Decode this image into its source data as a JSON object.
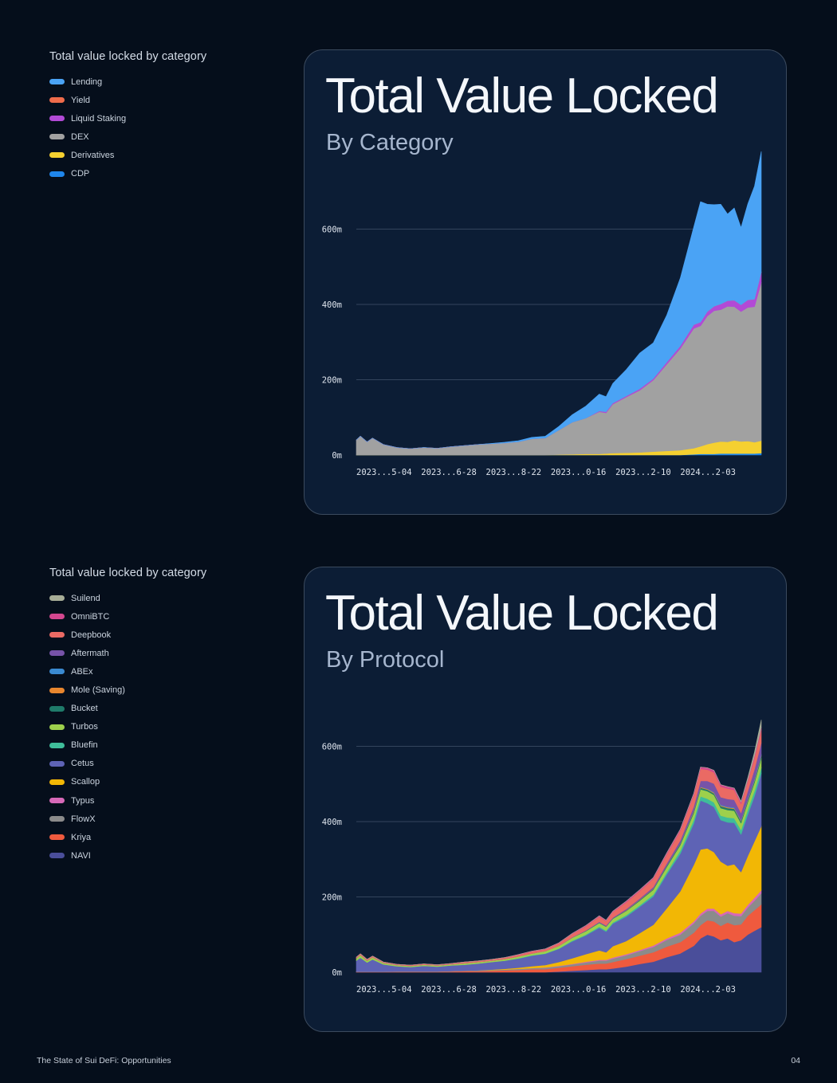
{
  "footer": {
    "document_title": "The State of Sui DeFi: Opportunities",
    "page_number": "04"
  },
  "chart_data": [
    {
      "type": "area",
      "stacked": true,
      "title": "Total Value Locked",
      "subtitle": "By Category",
      "legend_title": "Total value locked by category",
      "legend_placement": "left",
      "y_tick_labels": [
        "0m",
        "200m",
        "400m",
        "600m"
      ],
      "x_tick_labels": [
        "2023...5-04",
        "2023...6-28",
        "2023...8-22",
        "2023...0-16",
        "2023...2-10",
        "2024...2-03"
      ],
      "ylim": [
        0,
        800
      ],
      "grid": true,
      "x_range": [
        0,
        300
      ],
      "x_ticks": [
        0,
        48,
        96,
        144,
        192,
        240
      ],
      "legend": [
        {
          "name": "Lending",
          "color": "#4aa3f5"
        },
        {
          "name": "Yield",
          "color": "#ef6c4b"
        },
        {
          "name": "Liquid Staking",
          "color": "#b24ad6"
        },
        {
          "name": "DEX",
          "color": "#a1a1a1"
        },
        {
          "name": "Derivatives",
          "color": "#f5d030"
        },
        {
          "name": "CDP",
          "color": "#1f86ec"
        }
      ],
      "draw_order": [
        "CDP",
        "Derivatives",
        "DEX",
        "Liquid Staking",
        "Yield",
        "Lending"
      ],
      "x": [
        0,
        3,
        8,
        12,
        20,
        30,
        40,
        50,
        60,
        70,
        80,
        90,
        100,
        110,
        120,
        130,
        140,
        150,
        160,
        170,
        180,
        185,
        190,
        200,
        210,
        220,
        230,
        240,
        250,
        255,
        260,
        265,
        270,
        275,
        280,
        285,
        290,
        295,
        300
      ],
      "series": [
        {
          "name": "CDP",
          "values": [
            0,
            0,
            0,
            0,
            0,
            0,
            0,
            0,
            0,
            0,
            0,
            0,
            0,
            0,
            0,
            0,
            0,
            0,
            0,
            0,
            0,
            0,
            0,
            0,
            0,
            0,
            0,
            0,
            2,
            3,
            3,
            3,
            4,
            4,
            4,
            4,
            4,
            4,
            5
          ]
        },
        {
          "name": "Derivatives",
          "values": [
            0,
            0,
            0,
            0,
            0,
            0,
            0,
            0,
            0,
            0,
            0,
            0,
            0,
            0,
            0,
            0,
            0,
            1,
            2,
            3,
            3,
            4,
            5,
            6,
            7,
            9,
            11,
            13,
            16,
            20,
            26,
            30,
            32,
            31,
            35,
            32,
            33,
            30,
            33
          ]
        },
        {
          "name": "DEX",
          "values": [
            40,
            50,
            35,
            45,
            28,
            20,
            17,
            20,
            18,
            22,
            25,
            28,
            30,
            32,
            35,
            43,
            45,
            65,
            85,
            95,
            112,
            108,
            130,
            148,
            165,
            190,
            230,
            270,
            318,
            320,
            340,
            350,
            350,
            360,
            355,
            345,
            355,
            360,
            420
          ]
        },
        {
          "name": "Liquid Staking",
          "values": [
            0,
            0,
            0,
            0,
            0,
            0,
            0,
            0,
            0,
            0,
            0,
            0,
            0,
            0,
            0,
            0,
            0,
            0,
            0,
            0,
            2,
            3,
            3,
            3,
            4,
            4,
            6,
            7,
            10,
            10,
            12,
            12,
            15,
            15,
            17,
            18,
            20,
            20,
            28
          ]
        },
        {
          "name": "Yield",
          "values": [
            0,
            0,
            0,
            0,
            0,
            0,
            0,
            0,
            0,
            0,
            0,
            0,
            0,
            0,
            0,
            0,
            0,
            0,
            0,
            0,
            0,
            0,
            0,
            0,
            0,
            0,
            0,
            0,
            0,
            0,
            0,
            0,
            0,
            0,
            0,
            0,
            0,
            0,
            0
          ]
        },
        {
          "name": "Lending",
          "values": [
            0,
            0,
            0,
            0,
            0,
            0,
            0,
            0,
            0,
            0,
            0,
            0,
            1,
            2,
            3,
            4,
            5,
            10,
            20,
            32,
            45,
            40,
            52,
            70,
            95,
            95,
            125,
            180,
            260,
            320,
            285,
            270,
            265,
            230,
            245,
            205,
            255,
            300,
            320
          ]
        }
      ]
    },
    {
      "type": "area",
      "stacked": true,
      "title": "Total Value Locked",
      "subtitle": "By Protocol",
      "legend_title": "Total value locked by category",
      "legend_placement": "left",
      "y_tick_labels": [
        "0m",
        "200m",
        "400m",
        "600m"
      ],
      "x_tick_labels": [
        "2023...5-04",
        "2023...6-28",
        "2023...8-22",
        "2023...0-16",
        "2023...2-10",
        "2024...2-03"
      ],
      "ylim": [
        0,
        800
      ],
      "grid": true,
      "x_range": [
        0,
        300
      ],
      "x_ticks": [
        0,
        48,
        96,
        144,
        192,
        240
      ],
      "legend": [
        {
          "name": "Suilend",
          "color": "#a7ad97"
        },
        {
          "name": "OmniBTC",
          "color": "#d3478f"
        },
        {
          "name": "Deepbook",
          "color": "#ea6a64"
        },
        {
          "name": "Aftermath",
          "color": "#7753a8"
        },
        {
          "name": "ABEx",
          "color": "#3a8ad1"
        },
        {
          "name": "Mole (Saving)",
          "color": "#e8862e"
        },
        {
          "name": "Bucket",
          "color": "#1f7b6a"
        },
        {
          "name": "Turbos",
          "color": "#9dd04c"
        },
        {
          "name": "Bluefin",
          "color": "#3fbd9a"
        },
        {
          "name": "Cetus",
          "color": "#5e63b5"
        },
        {
          "name": "Scallop",
          "color": "#f2b705"
        },
        {
          "name": "Typus",
          "color": "#d769b8"
        },
        {
          "name": "FlowX",
          "color": "#8b8b8b"
        },
        {
          "name": "Kriya",
          "color": "#ef5a3e"
        },
        {
          "name": "NAVI",
          "color": "#4a4e9a"
        }
      ],
      "draw_order": [
        "NAVI",
        "Kriya",
        "FlowX",
        "Typus",
        "Scallop",
        "Cetus",
        "Bluefin",
        "Turbos",
        "Bucket",
        "Mole (Saving)",
        "ABEx",
        "Aftermath",
        "Deepbook",
        "OmniBTC",
        "Suilend"
      ],
      "x": [
        0,
        3,
        8,
        12,
        20,
        30,
        40,
        50,
        60,
        70,
        80,
        90,
        100,
        110,
        120,
        130,
        140,
        150,
        160,
        170,
        180,
        185,
        190,
        200,
        210,
        220,
        230,
        240,
        250,
        255,
        260,
        265,
        270,
        275,
        280,
        285,
        290,
        295,
        300
      ],
      "series": [
        {
          "name": "NAVI",
          "values": [
            0,
            0,
            0,
            0,
            0,
            0,
            0,
            0,
            0,
            0,
            0,
            0,
            0,
            0,
            0,
            0,
            0,
            2,
            4,
            6,
            8,
            8,
            10,
            15,
            22,
            28,
            40,
            50,
            70,
            90,
            100,
            95,
            85,
            90,
            80,
            85,
            100,
            110,
            120
          ]
        },
        {
          "name": "Kriya",
          "values": [
            1,
            1,
            1,
            1,
            1,
            1,
            1,
            1,
            1,
            2,
            3,
            3,
            4,
            5,
            6,
            8,
            8,
            10,
            12,
            14,
            15,
            15,
            17,
            20,
            22,
            25,
            28,
            30,
            35,
            35,
            38,
            40,
            38,
            42,
            45,
            42,
            50,
            55,
            60
          ]
        },
        {
          "name": "FlowX",
          "values": [
            0,
            0,
            0,
            0,
            0,
            1,
            1,
            1,
            1,
            1,
            1,
            2,
            2,
            2,
            3,
            3,
            4,
            4,
            5,
            6,
            8,
            8,
            9,
            10,
            12,
            14,
            18,
            20,
            25,
            25,
            25,
            28,
            25,
            25,
            25,
            22,
            22,
            25,
            30
          ]
        },
        {
          "name": "Typus",
          "values": [
            0,
            0,
            0,
            0,
            0,
            0,
            0,
            0,
            0,
            0,
            0,
            0,
            0,
            0,
            0,
            0,
            1,
            1,
            1,
            2,
            2,
            2,
            3,
            3,
            3,
            4,
            4,
            5,
            5,
            6,
            6,
            6,
            6,
            6,
            7,
            7,
            7,
            8,
            8
          ]
        },
        {
          "name": "Scallop",
          "values": [
            0,
            0,
            0,
            0,
            0,
            0,
            0,
            0,
            0,
            0,
            0,
            0,
            1,
            2,
            3,
            5,
            6,
            10,
            15,
            20,
            25,
            20,
            30,
            35,
            45,
            55,
            80,
            110,
            150,
            170,
            160,
            150,
            140,
            120,
            130,
            110,
            130,
            150,
            170
          ]
        },
        {
          "name": "Cetus",
          "values": [
            30,
            38,
            25,
            33,
            20,
            14,
            12,
            15,
            13,
            15,
            16,
            18,
            20,
            22,
            24,
            28,
            30,
            35,
            45,
            50,
            60,
            55,
            60,
            65,
            70,
            75,
            90,
            100,
            110,
            130,
            120,
            120,
            110,
            115,
            110,
            100,
            110,
            120,
            140
          ]
        },
        {
          "name": "Bluefin",
          "values": [
            0,
            0,
            0,
            0,
            0,
            0,
            0,
            0,
            0,
            0,
            0,
            0,
            0,
            0,
            1,
            1,
            1,
            1,
            2,
            2,
            3,
            3,
            3,
            4,
            4,
            5,
            6,
            8,
            10,
            11,
            12,
            12,
            12,
            13,
            12,
            12,
            13,
            14,
            15
          ]
        },
        {
          "name": "Turbos",
          "values": [
            6,
            7,
            5,
            6,
            4,
            3,
            3,
            3,
            3,
            3,
            4,
            4,
            4,
            4,
            5,
            5,
            6,
            7,
            8,
            9,
            10,
            10,
            10,
            11,
            12,
            13,
            14,
            15,
            18,
            19,
            20,
            20,
            20,
            20,
            20,
            18,
            20,
            22,
            25
          ]
        },
        {
          "name": "Bucket",
          "values": [
            0,
            0,
            0,
            0,
            0,
            0,
            0,
            0,
            0,
            0,
            0,
            0,
            0,
            0,
            0,
            0,
            0,
            0,
            0,
            1,
            1,
            1,
            1,
            1,
            2,
            2,
            3,
            3,
            4,
            4,
            4,
            4,
            5,
            5,
            5,
            5,
            5,
            5,
            6
          ]
        },
        {
          "name": "Mole (Saving)",
          "values": [
            0,
            0,
            0,
            0,
            0,
            0,
            0,
            0,
            0,
            0,
            0,
            0,
            0,
            0,
            0,
            0,
            0,
            0,
            0,
            0,
            0,
            0,
            0,
            1,
            1,
            1,
            1,
            1,
            2,
            2,
            2,
            2,
            2,
            2,
            2,
            2,
            2,
            2,
            2
          ]
        },
        {
          "name": "ABEx",
          "values": [
            0,
            0,
            0,
            0,
            0,
            0,
            0,
            0,
            0,
            0,
            0,
            0,
            0,
            0,
            0,
            0,
            0,
            0,
            0,
            0,
            0,
            0,
            0,
            0,
            0,
            0,
            0,
            0,
            1,
            1,
            1,
            2,
            2,
            2,
            2,
            2,
            2,
            3,
            3
          ]
        },
        {
          "name": "Aftermath",
          "values": [
            0,
            0,
            0,
            0,
            0,
            0,
            0,
            0,
            0,
            0,
            0,
            0,
            0,
            0,
            0,
            0,
            0,
            0,
            1,
            1,
            2,
            2,
            2,
            3,
            3,
            4,
            5,
            8,
            10,
            15,
            20,
            22,
            20,
            20,
            20,
            18,
            20,
            25,
            30
          ]
        },
        {
          "name": "Deepbook",
          "values": [
            3,
            3,
            3,
            3,
            2,
            2,
            2,
            2,
            2,
            2,
            3,
            3,
            3,
            4,
            4,
            5,
            5,
            7,
            9,
            11,
            14,
            12,
            15,
            18,
            20,
            22,
            24,
            26,
            30,
            32,
            30,
            30,
            28,
            28,
            26,
            24,
            26,
            30,
            35
          ]
        },
        {
          "name": "OmniBTC",
          "values": [
            0,
            0,
            0,
            0,
            0,
            0,
            0,
            0,
            0,
            0,
            0,
            0,
            0,
            0,
            1,
            1,
            1,
            1,
            1,
            2,
            2,
            2,
            2,
            3,
            3,
            3,
            4,
            4,
            5,
            5,
            5,
            5,
            5,
            5,
            5,
            5,
            5,
            6,
            6
          ]
        },
        {
          "name": "Suilend",
          "values": [
            0,
            0,
            0,
            0,
            0,
            0,
            0,
            0,
            0,
            0,
            0,
            0,
            0,
            0,
            0,
            0,
            0,
            0,
            0,
            0,
            0,
            0,
            0,
            0,
            0,
            0,
            0,
            0,
            0,
            0,
            0,
            0,
            0,
            0,
            0,
            2,
            5,
            10,
            20
          ]
        }
      ]
    }
  ]
}
